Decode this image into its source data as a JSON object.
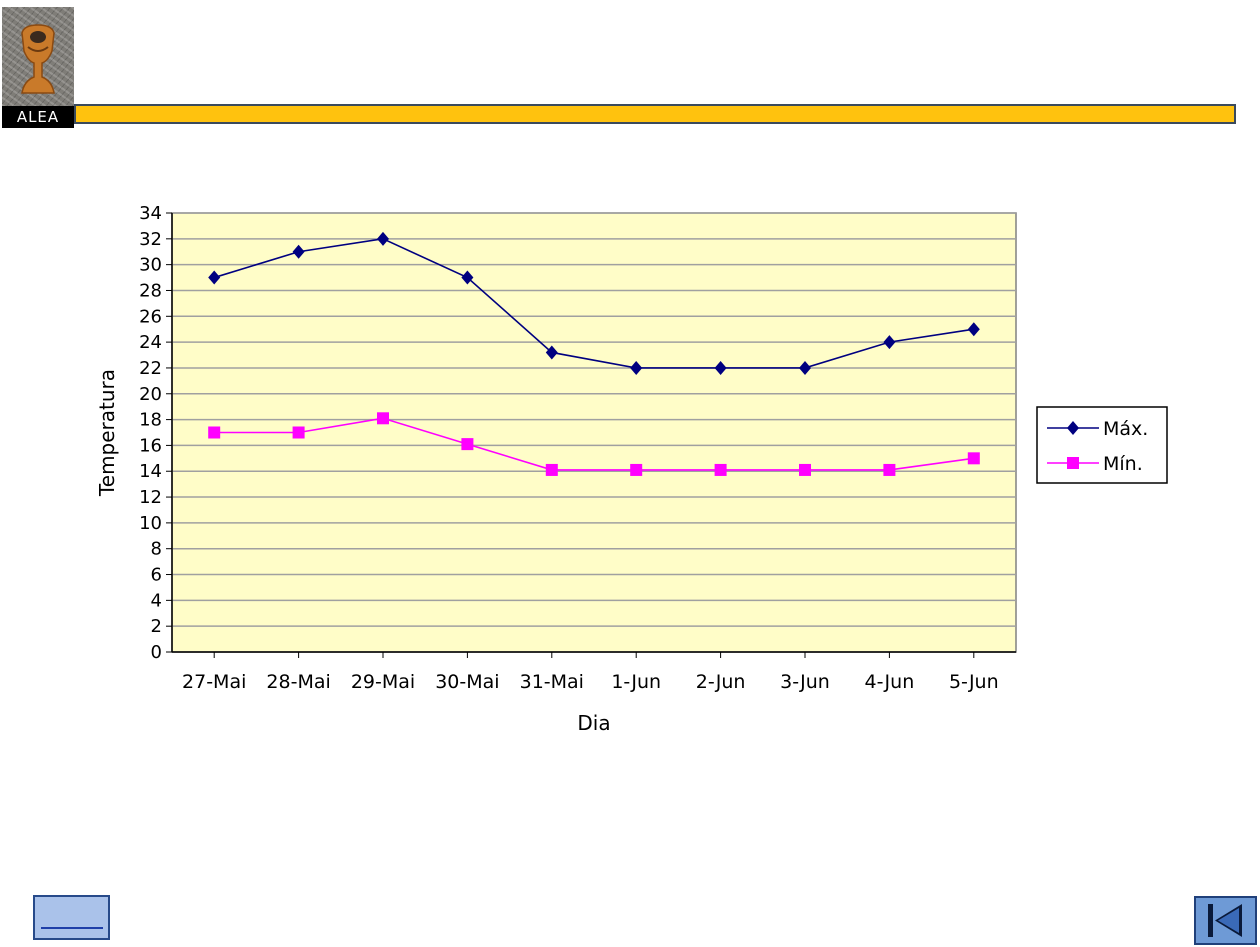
{
  "logo": {
    "text": "ALEA",
    "icon": "alea-logo-chalice"
  },
  "header": {
    "bar_color": "#ffc20e"
  },
  "chart_data": {
    "type": "line",
    "title": "",
    "xlabel": "Dia",
    "ylabel": "Temperatura",
    "categories": [
      "27-Mai",
      "28-Mai",
      "29-Mai",
      "30-Mai",
      "31-Mai",
      "1-Jun",
      "2-Jun",
      "3-Jun",
      "4-Jun",
      "5-Jun"
    ],
    "ylim": [
      0,
      34
    ],
    "yticks": [
      0,
      2,
      4,
      6,
      8,
      10,
      12,
      14,
      16,
      18,
      20,
      22,
      24,
      26,
      28,
      30,
      32,
      34
    ],
    "grid": true,
    "legend_position": "right",
    "plot_background": "#fffdc8",
    "series": [
      {
        "name": "Máx.",
        "values": [
          29,
          31,
          32,
          29,
          23.2,
          22,
          22,
          22,
          24,
          25
        ],
        "color": "#000080",
        "marker": "diamond"
      },
      {
        "name": "Mín.",
        "values": [
          17,
          17,
          18.1,
          16.1,
          14.1,
          14.1,
          14.1,
          14.1,
          14.1,
          15
        ],
        "color": "#ff00ff",
        "marker": "square"
      }
    ]
  },
  "nav": {
    "back_icon": "back-link-icon",
    "first_icon": "skip-to-first-icon"
  }
}
